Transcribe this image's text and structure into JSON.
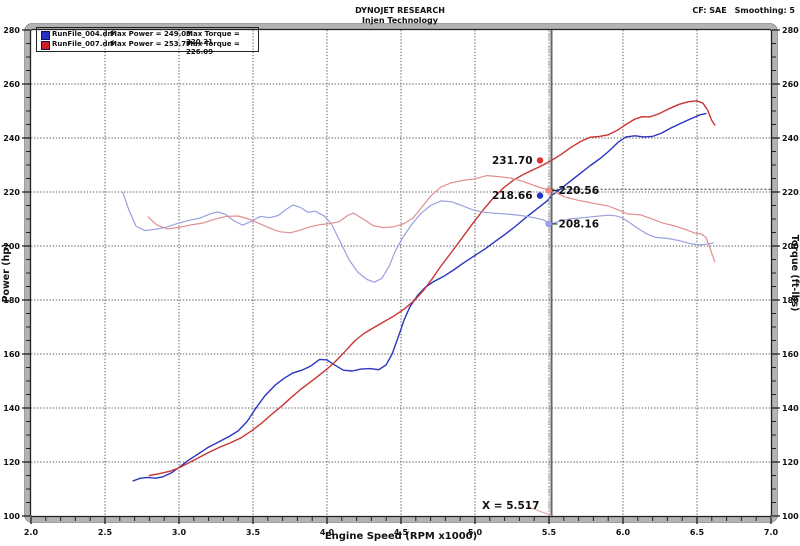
{
  "header": {
    "title": "DYNOJET RESEARCH",
    "subtitle": "Injen Technology",
    "cf": "CF: SAE",
    "smoothing": "Smoothing: 5"
  },
  "legend": {
    "rows": [
      {
        "file": "RunFile_004.drf",
        "power": "Max Power = 249.03",
        "torque": "Max Torque = 220.21",
        "color": "#2233bb"
      },
      {
        "file": "RunFile_007.drf",
        "power": "Max Power = 253.77",
        "torque": "Max Torque = 226.09",
        "color": "#cc2222"
      }
    ]
  },
  "cursor": {
    "x_value": 5.517,
    "x_label": "X = 5.517",
    "markers": [
      {
        "text": "231.70",
        "value": 231.7,
        "side": "left",
        "dot_color": "#e03030",
        "series": "red-power"
      },
      {
        "text": "218.66",
        "value": 218.66,
        "side": "left",
        "dot_color": "#2233cc",
        "series": "blue-power"
      },
      {
        "text": "220.56",
        "value": 220.56,
        "side": "right",
        "dot_color": "#ee8a80",
        "series": "red-torque"
      },
      {
        "text": "208.16",
        "value": 208.16,
        "side": "right",
        "dot_color": "#9aa0e8",
        "series": "blue-torque"
      }
    ]
  },
  "chart_data": {
    "type": "line",
    "title": "DYNOJET RESEARCH - Injen Technology",
    "xlabel": "Engine Speed (RPM x1000)",
    "ylabel_left": "Power (hp)",
    "ylabel_right": "Torque (ft-lbs)",
    "xlim": [
      2.0,
      7.0
    ],
    "x_major": 0.5,
    "x_minor": 0.1,
    "ylim": [
      100,
      280
    ],
    "y_major": 20,
    "y_minor": 5,
    "grid": "dotted",
    "series": [
      {
        "name": "blue-power",
        "legend": "RunFile_004.drf",
        "unit": "hp",
        "color": "#2a35c0",
        "width": 1.4,
        "points": [
          [
            2.69,
            113
          ],
          [
            2.74,
            114
          ],
          [
            2.79,
            114.3
          ],
          [
            2.84,
            114
          ],
          [
            2.89,
            114.5
          ],
          [
            2.95,
            116
          ],
          [
            3.0,
            118
          ],
          [
            3.06,
            120.5
          ],
          [
            3.13,
            123
          ],
          [
            3.2,
            125.5
          ],
          [
            3.27,
            127.5
          ],
          [
            3.34,
            129.5
          ],
          [
            3.4,
            131.5
          ],
          [
            3.46,
            135
          ],
          [
            3.52,
            140
          ],
          [
            3.58,
            144.5
          ],
          [
            3.65,
            148.5
          ],
          [
            3.71,
            151
          ],
          [
            3.77,
            153
          ],
          [
            3.83,
            154
          ],
          [
            3.89,
            155.5
          ],
          [
            3.95,
            158
          ],
          [
            4.0,
            157.8
          ],
          [
            4.05,
            156
          ],
          [
            4.11,
            154
          ],
          [
            4.17,
            153.7
          ],
          [
            4.23,
            154.4
          ],
          [
            4.29,
            154.6
          ],
          [
            4.35,
            154.2
          ],
          [
            4.4,
            156
          ],
          [
            4.44,
            160
          ],
          [
            4.48,
            166
          ],
          [
            4.52,
            172.5
          ],
          [
            4.56,
            177.5
          ],
          [
            4.61,
            181.5
          ],
          [
            4.66,
            184.5
          ],
          [
            4.72,
            186.8
          ],
          [
            4.79,
            188.8
          ],
          [
            4.86,
            191.3
          ],
          [
            4.93,
            194
          ],
          [
            5.0,
            196.5
          ],
          [
            5.07,
            199
          ],
          [
            5.14,
            201.8
          ],
          [
            5.21,
            204.6
          ],
          [
            5.28,
            207.6
          ],
          [
            5.35,
            210.8
          ],
          [
            5.42,
            213.8
          ],
          [
            5.49,
            216.8
          ],
          [
            5.517,
            218.66
          ],
          [
            5.57,
            220.8
          ],
          [
            5.64,
            223.8
          ],
          [
            5.71,
            226.8
          ],
          [
            5.78,
            229.8
          ],
          [
            5.85,
            232.6
          ],
          [
            5.91,
            235.4
          ],
          [
            5.97,
            238.6
          ],
          [
            6.02,
            240.4
          ],
          [
            6.08,
            240.8
          ],
          [
            6.14,
            240.4
          ],
          [
            6.2,
            240.6
          ],
          [
            6.26,
            241.8
          ],
          [
            6.32,
            243.6
          ],
          [
            6.39,
            245.4
          ],
          [
            6.46,
            247.2
          ],
          [
            6.52,
            248.6
          ],
          [
            6.56,
            249.03
          ]
        ]
      },
      {
        "name": "red-power",
        "legend": "RunFile_007.drf",
        "unit": "hp",
        "color": "#c93434",
        "width": 1.4,
        "points": [
          [
            2.8,
            115
          ],
          [
            2.87,
            115.7
          ],
          [
            2.94,
            116.6
          ],
          [
            3.0,
            117.8
          ],
          [
            3.07,
            119.8
          ],
          [
            3.14,
            121.8
          ],
          [
            3.21,
            123.8
          ],
          [
            3.28,
            125.6
          ],
          [
            3.35,
            127.2
          ],
          [
            3.42,
            129
          ],
          [
            3.49,
            131.5
          ],
          [
            3.56,
            134.5
          ],
          [
            3.63,
            137.8
          ],
          [
            3.7,
            141
          ],
          [
            3.76,
            144
          ],
          [
            3.82,
            146.8
          ],
          [
            3.88,
            149.3
          ],
          [
            3.94,
            151.8
          ],
          [
            4.0,
            154.4
          ],
          [
            4.06,
            157.4
          ],
          [
            4.13,
            161.4
          ],
          [
            4.19,
            165
          ],
          [
            4.25,
            167.6
          ],
          [
            4.31,
            169.6
          ],
          [
            4.38,
            171.8
          ],
          [
            4.45,
            174
          ],
          [
            4.52,
            176.6
          ],
          [
            4.59,
            179.8
          ],
          [
            4.65,
            183.4
          ],
          [
            4.71,
            187.8
          ],
          [
            4.77,
            192.6
          ],
          [
            4.84,
            197.6
          ],
          [
            4.91,
            202.8
          ],
          [
            4.98,
            208
          ],
          [
            5.05,
            213
          ],
          [
            5.12,
            217.6
          ],
          [
            5.19,
            221.4
          ],
          [
            5.26,
            224.4
          ],
          [
            5.33,
            226.6
          ],
          [
            5.4,
            228.4
          ],
          [
            5.46,
            230
          ],
          [
            5.517,
            231.7
          ],
          [
            5.58,
            233.8
          ],
          [
            5.65,
            236.6
          ],
          [
            5.72,
            238.9
          ],
          [
            5.78,
            240.3
          ],
          [
            5.84,
            240.6
          ],
          [
            5.9,
            241.2
          ],
          [
            5.96,
            242.8
          ],
          [
            6.02,
            245
          ],
          [
            6.08,
            247
          ],
          [
            6.13,
            247.9
          ],
          [
            6.18,
            247.8
          ],
          [
            6.24,
            248.9
          ],
          [
            6.31,
            250.8
          ],
          [
            6.38,
            252.5
          ],
          [
            6.44,
            253.4
          ],
          [
            6.5,
            253.77
          ],
          [
            6.54,
            252.9
          ],
          [
            6.57,
            250.5
          ],
          [
            6.6,
            246.5
          ],
          [
            6.62,
            244.8
          ]
        ]
      },
      {
        "name": "blue-torque",
        "legend": "RunFile_004.drf",
        "unit": "ft-lbs",
        "color": "#9aa0e0",
        "width": 1.2,
        "points": [
          [
            2.62,
            219.9
          ],
          [
            2.66,
            213.5
          ],
          [
            2.71,
            207.3
          ],
          [
            2.77,
            205.7
          ],
          [
            2.84,
            206.2
          ],
          [
            2.91,
            206.9
          ],
          [
            2.98,
            208.2
          ],
          [
            3.06,
            209.4
          ],
          [
            3.14,
            210.3
          ],
          [
            3.21,
            211.9
          ],
          [
            3.26,
            212.6
          ],
          [
            3.31,
            211.8
          ],
          [
            3.37,
            209.4
          ],
          [
            3.43,
            207.7
          ],
          [
            3.49,
            209.2
          ],
          [
            3.55,
            211
          ],
          [
            3.61,
            210.5
          ],
          [
            3.67,
            211.3
          ],
          [
            3.73,
            213.8
          ],
          [
            3.77,
            215.2
          ],
          [
            3.82,
            214.3
          ],
          [
            3.87,
            212.5
          ],
          [
            3.92,
            212.9
          ],
          [
            3.98,
            211.2
          ],
          [
            4.03,
            208.2
          ],
          [
            4.09,
            201.5
          ],
          [
            4.15,
            194.8
          ],
          [
            4.21,
            190.2
          ],
          [
            4.27,
            187.6
          ],
          [
            4.32,
            186.6
          ],
          [
            4.37,
            188
          ],
          [
            4.42,
            192.5
          ],
          [
            4.46,
            198
          ],
          [
            4.51,
            203
          ],
          [
            4.57,
            207.8
          ],
          [
            4.63,
            211.8
          ],
          [
            4.7,
            215
          ],
          [
            4.77,
            216.7
          ],
          [
            4.84,
            216.4
          ],
          [
            4.91,
            215
          ],
          [
            4.98,
            213.5
          ],
          [
            5.06,
            212.5
          ],
          [
            5.14,
            212.1
          ],
          [
            5.22,
            211.8
          ],
          [
            5.31,
            211.3
          ],
          [
            5.4,
            210.5
          ],
          [
            5.46,
            209.7
          ],
          [
            5.517,
            208.16
          ],
          [
            5.57,
            209.2
          ],
          [
            5.64,
            210
          ],
          [
            5.73,
            210.5
          ],
          [
            5.82,
            211
          ],
          [
            5.9,
            211.4
          ],
          [
            5.95,
            211.2
          ],
          [
            6.0,
            210.3
          ],
          [
            6.05,
            208.5
          ],
          [
            6.1,
            206.5
          ],
          [
            6.16,
            204.5
          ],
          [
            6.22,
            203.2
          ],
          [
            6.3,
            202.8
          ],
          [
            6.38,
            202
          ],
          [
            6.45,
            200.9
          ],
          [
            6.52,
            200.4
          ],
          [
            6.58,
            200.8
          ],
          [
            6.61,
            201.1
          ]
        ]
      },
      {
        "name": "red-torque",
        "legend": "RunFile_007.drf",
        "unit": "ft-lbs",
        "color": "#e08f8f",
        "width": 1.2,
        "points": [
          [
            2.79,
            210.8
          ],
          [
            2.85,
            207.8
          ],
          [
            2.92,
            206.3
          ],
          [
            3.0,
            206.9
          ],
          [
            3.08,
            207.8
          ],
          [
            3.16,
            208.5
          ],
          [
            3.24,
            209.9
          ],
          [
            3.32,
            211
          ],
          [
            3.4,
            211.1
          ],
          [
            3.47,
            210
          ],
          [
            3.54,
            208.4
          ],
          [
            3.61,
            206.7
          ],
          [
            3.68,
            205.3
          ],
          [
            3.75,
            204.9
          ],
          [
            3.81,
            205.7
          ],
          [
            3.88,
            207
          ],
          [
            3.95,
            207.9
          ],
          [
            4.02,
            208.3
          ],
          [
            4.08,
            209
          ],
          [
            4.14,
            211.3
          ],
          [
            4.18,
            212.2
          ],
          [
            4.24,
            210.2
          ],
          [
            4.31,
            207.6
          ],
          [
            4.38,
            206.8
          ],
          [
            4.45,
            207.1
          ],
          [
            4.52,
            208.3
          ],
          [
            4.58,
            210.3
          ],
          [
            4.64,
            214.3
          ],
          [
            4.7,
            218.5
          ],
          [
            4.77,
            221.9
          ],
          [
            4.84,
            223.4
          ],
          [
            4.92,
            224.3
          ],
          [
            5.0,
            224.9
          ],
          [
            5.08,
            226.09
          ],
          [
            5.16,
            225.7
          ],
          [
            5.24,
            225.2
          ],
          [
            5.32,
            224
          ],
          [
            5.4,
            222.4
          ],
          [
            5.46,
            221.3
          ],
          [
            5.517,
            220.56
          ],
          [
            5.6,
            218.3
          ],
          [
            5.7,
            216.9
          ],
          [
            5.8,
            215.8
          ],
          [
            5.9,
            214.8
          ],
          [
            5.97,
            213.3
          ],
          [
            6.03,
            211.9
          ],
          [
            6.12,
            211.5
          ],
          [
            6.19,
            210.1
          ],
          [
            6.27,
            208.5
          ],
          [
            6.35,
            207.4
          ],
          [
            6.42,
            206.2
          ],
          [
            6.48,
            204.9
          ],
          [
            6.53,
            204.4
          ],
          [
            6.56,
            203.2
          ],
          [
            6.58,
            200.5
          ],
          [
            6.6,
            197.2
          ],
          [
            6.62,
            194.2
          ]
        ]
      }
    ]
  }
}
